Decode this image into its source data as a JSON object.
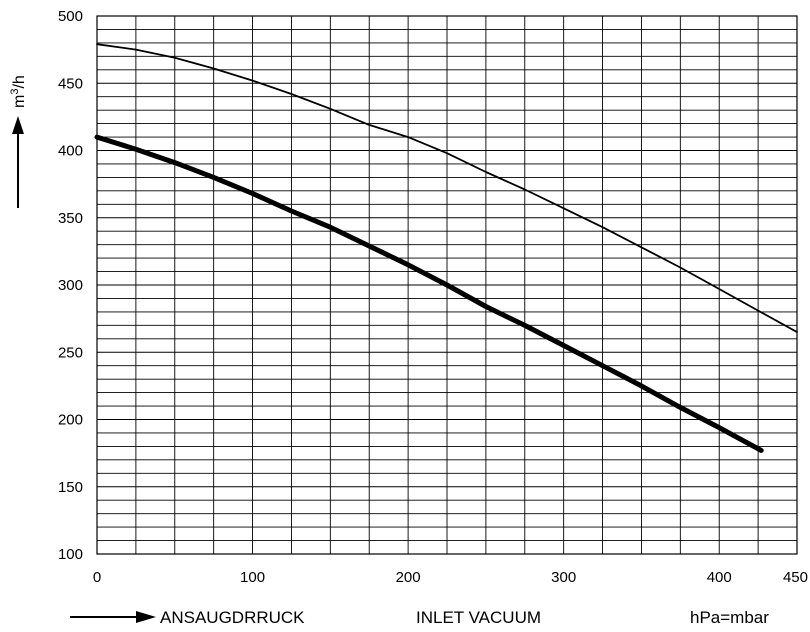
{
  "chart_data": {
    "type": "line",
    "title": "",
    "ylabel_base": "m",
    "ylabel_sup": "3",
    "ylabel_suffix": "/h",
    "xlim": [
      0,
      450
    ],
    "ylim": [
      100,
      500
    ],
    "x_ticks": [
      "0",
      "100",
      "200",
      "300",
      "400",
      "450"
    ],
    "y_ticks": [
      "100",
      "150",
      "200",
      "250",
      "300",
      "350",
      "400",
      "450",
      "500"
    ],
    "grid": true,
    "x_minor_step": 25,
    "y_minor_step": 10,
    "series": [
      {
        "style": "thin",
        "color": "#000000",
        "x": [
          0,
          25,
          50,
          75,
          100,
          125,
          150,
          175,
          200,
          225,
          250,
          275,
          300,
          325,
          350,
          375,
          400,
          425,
          450
        ],
        "y": [
          479,
          475,
          469,
          461,
          452,
          442,
          431,
          419,
          410,
          398,
          384,
          371,
          357,
          343,
          328,
          313,
          297,
          281,
          265
        ]
      },
      {
        "style": "thick",
        "color": "#000000",
        "x": [
          0,
          25,
          50,
          75,
          100,
          125,
          150,
          175,
          200,
          225,
          250,
          275,
          300,
          325,
          350,
          375,
          400,
          427
        ],
        "y": [
          410,
          401,
          391,
          380,
          368,
          355,
          343,
          329,
          315,
          300,
          284,
          270,
          255,
          240,
          225,
          209,
          194,
          177
        ]
      }
    ]
  },
  "bottom": {
    "ansaug_label": "ANSAUGDRRUCK",
    "inlet_label": "INLET VACUUM",
    "unit_label": "hPa=mbar"
  }
}
